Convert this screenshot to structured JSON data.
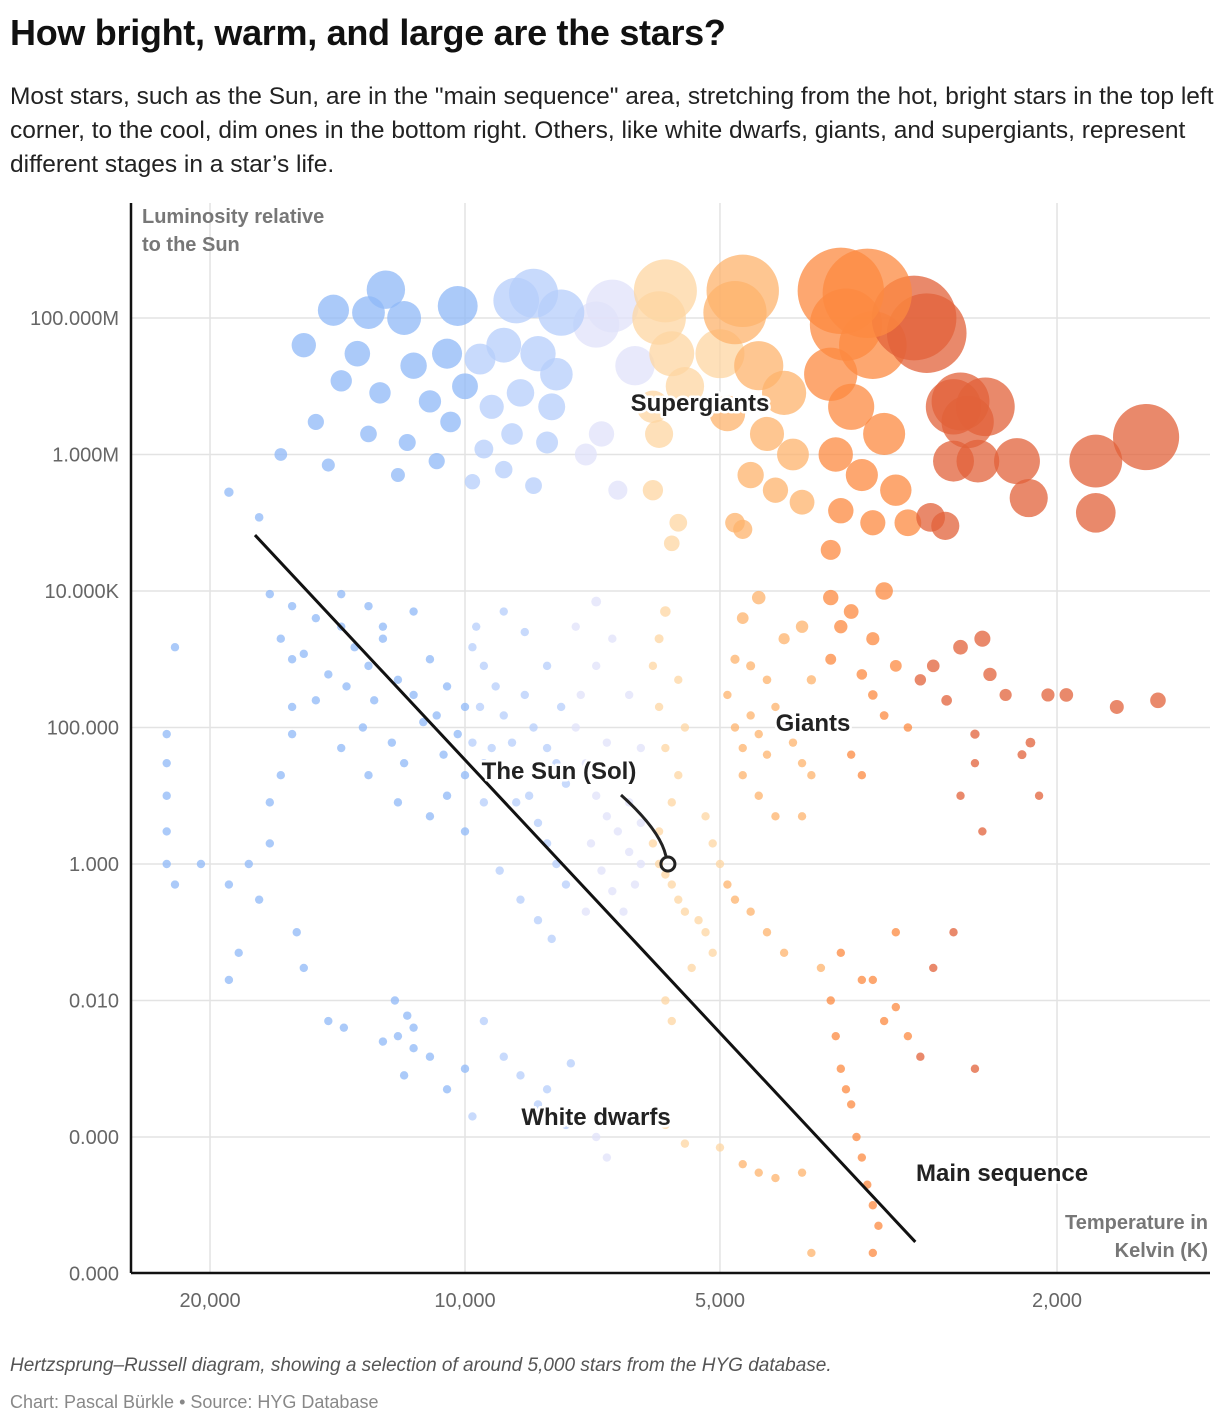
{
  "header": {
    "title": "How bright, warm, and large are the stars?",
    "subtitle": "Most stars, such as the Sun, are in the \"main sequence\" area, stretching from the hot, bright stars in the top left corner, to the cool, dim ones in the bottom right. Others, like white dwarfs, giants, and supergiants, represent different stages in a star’s life."
  },
  "footer": {
    "caption": "Hertzsprung–Russell diagram, showing a selection of around 5,000 stars from the HYG database.",
    "credit": "Chart: Pascal Bürkle • Source: HYG Database"
  },
  "chart_data": {
    "type": "scatter",
    "title": "How bright, warm, and large are the stars?",
    "xlabel": "Temperature in Kelvin (K)",
    "ylabel": "Luminosity relative to the Sun",
    "x_scale": "log-reversed",
    "y_scale": "log",
    "xlim": [
      25000,
      1300
    ],
    "ylim": [
      1e-06,
      4800000000
    ],
    "grid": true,
    "x_ticks": [
      {
        "value": 20000,
        "label": "20,000"
      },
      {
        "value": 10000,
        "label": "10,000"
      },
      {
        "value": 5000,
        "label": "5,000"
      },
      {
        "value": 2000,
        "label": "2,000"
      }
    ],
    "y_ticks": [
      {
        "value": 100000000,
        "label": "100.000M"
      },
      {
        "value": 1000000,
        "label": "1.000M"
      },
      {
        "value": 10000,
        "label": "10.000K"
      },
      {
        "value": 100,
        "label": "100.000"
      },
      {
        "value": 1,
        "label": "1.000"
      },
      {
        "value": 0.01,
        "label": "0.010"
      },
      {
        "value": 0.0001,
        "label": "0.000"
      },
      {
        "value": 1e-06,
        "label": "0.000"
      }
    ],
    "color_scale": [
      {
        "min_temp": 10000,
        "color": "#8fb8f7"
      },
      {
        "min_temp": 7500,
        "color": "#b6cefb"
      },
      {
        "min_temp": 6050,
        "color": "#e0e2fa"
      },
      {
        "min_temp": 5000,
        "color": "#fed6a2"
      },
      {
        "min_temp": 3800,
        "color": "#fdb36c"
      },
      {
        "min_temp": 3000,
        "color": "#fc8a40"
      },
      {
        "min_temp": 0,
        "color": "#e2613a"
      }
    ],
    "point_fields": [
      "temperature_K",
      "luminosity"
    ],
    "points": [
      [
        12400,
        260000000.0
      ],
      [
        14300,
        130000000.0
      ],
      [
        13000,
        120000000.0
      ],
      [
        11800,
        100000000.0
      ],
      [
        10200,
        150000000.0
      ],
      [
        8700,
        180000000.0
      ],
      [
        8300,
        230000000.0
      ],
      [
        7700,
        120000000.0
      ],
      [
        15500,
        40000000.0
      ],
      [
        13400,
        30000000.0
      ],
      [
        11500,
        20000000.0
      ],
      [
        10500,
        30000000.0
      ],
      [
        9600,
        25000000.0
      ],
      [
        9000,
        40000000.0
      ],
      [
        8200,
        30000000.0
      ],
      [
        7800,
        15000000.0
      ],
      [
        14000,
        12000000.0
      ],
      [
        12600,
        8000000.0
      ],
      [
        11000,
        6000000.0
      ],
      [
        10000,
        10000000.0
      ],
      [
        9300,
        5000000.0
      ],
      [
        8600,
        8000000.0
      ],
      [
        7900,
        5000000.0
      ],
      [
        15000,
        3000000.0
      ],
      [
        13000,
        2000000.0
      ],
      [
        11700,
        1500000.0
      ],
      [
        10400,
        3000000.0
      ],
      [
        9500,
        1200000.0
      ],
      [
        8800,
        2000000.0
      ],
      [
        8000,
        1500000.0
      ],
      [
        14500,
        700000.0
      ],
      [
        12000,
        500000.0
      ],
      [
        10800,
        800000.0
      ],
      [
        9800,
        400000.0
      ],
      [
        9000,
        600000.0
      ],
      [
        8300,
        350000.0
      ],
      [
        16500,
        1000000.0
      ],
      [
        17500,
        120000.0
      ],
      [
        19000,
        280000.0
      ],
      [
        7000,
        80000000.0
      ],
      [
        6700,
        150000000.0
      ],
      [
        6300,
        20000000.0
      ],
      [
        6000,
        5000000.0
      ],
      [
        7200,
        1000000.0
      ],
      [
        6600,
        300000.0
      ],
      [
        6900,
        2000000.0
      ],
      [
        5900,
        100000000.0
      ],
      [
        5800,
        250000000.0
      ],
      [
        5700,
        30000000.0
      ],
      [
        5500,
        10000000.0
      ],
      [
        5900,
        2000000.0
      ],
      [
        6000,
        300000.0
      ],
      [
        5600,
        100000.0
      ],
      [
        5700,
        50000.0
      ],
      [
        4700,
        250000000.0
      ],
      [
        4800,
        120000000.0
      ],
      [
        5000,
        30000000.0
      ],
      [
        4500,
        20000000.0
      ],
      [
        4200,
        8000000.0
      ],
      [
        4900,
        4000000.0
      ],
      [
        4400,
        2000000.0
      ],
      [
        4100,
        1000000.0
      ],
      [
        4600,
        500000.0
      ],
      [
        4300,
        300000.0
      ],
      [
        4000,
        200000.0
      ],
      [
        4800,
        100000.0
      ],
      [
        4700,
        80000.0
      ],
      [
        3600,
        250000000.0
      ],
      [
        3350,
        230000000.0
      ],
      [
        3550,
        80000000.0
      ],
      [
        3300,
        40000000.0
      ],
      [
        3700,
        15000000.0
      ],
      [
        3500,
        5000000.0
      ],
      [
        3200,
        2000000.0
      ],
      [
        3650,
        1000000.0
      ],
      [
        3400,
        500000.0
      ],
      [
        3100,
        300000.0
      ],
      [
        3600,
        150000.0
      ],
      [
        3300,
        100000.0
      ],
      [
        3700,
        40000.0
      ],
      [
        3000,
        100000.0
      ],
      [
        2950,
        100000000.0
      ],
      [
        2850,
        60000000.0
      ],
      [
        2650,
        5000000.0
      ],
      [
        2600,
        6000000.0
      ],
      [
        2550,
        3000000.0
      ],
      [
        2650,
        800000.0
      ],
      [
        2480,
        800000.0
      ],
      [
        2430,
        5000000.0
      ],
      [
        1800,
        800000.0
      ],
      [
        1570,
        1800000.0
      ],
      [
        1800,
        140000.0
      ],
      [
        2160,
        230000.0
      ],
      [
        2230,
        800000.0
      ],
      [
        2820,
        120000.0
      ],
      [
        2710,
        90000.0
      ],
      [
        14000,
        3000
      ],
      [
        13500,
        1500
      ],
      [
        13000,
        800
      ],
      [
        12500,
        2000
      ],
      [
        12000,
        500
      ],
      [
        11500,
        300
      ],
      [
        11000,
        1000
      ],
      [
        10800,
        150
      ],
      [
        10500,
        400
      ],
      [
        10200,
        80
      ],
      [
        10000,
        200
      ],
      [
        9800,
        60
      ],
      [
        9500,
        30
      ],
      [
        13800,
        400
      ],
      [
        13200,
        100
      ],
      [
        12800,
        250
      ],
      [
        12200,
        60
      ],
      [
        11800,
        30
      ],
      [
        11200,
        120
      ],
      [
        10600,
        40
      ],
      [
        10000,
        20
      ],
      [
        14500,
        600
      ],
      [
        15000,
        250
      ],
      [
        15500,
        1200
      ],
      [
        16000,
        80
      ],
      [
        14000,
        50
      ],
      [
        13000,
        20
      ],
      [
        12000,
        8
      ],
      [
        11000,
        5
      ],
      [
        10500,
        10
      ],
      [
        10000,
        3
      ],
      [
        9500,
        8
      ],
      [
        12500,
        3000
      ],
      [
        11500,
        5000
      ],
      [
        13000,
        6000
      ],
      [
        14000,
        9000
      ],
      [
        15000,
        4000
      ],
      [
        16000,
        6000
      ],
      [
        16500,
        2000
      ],
      [
        17000,
        9000
      ],
      [
        9800,
        1500
      ],
      [
        9500,
        800
      ],
      [
        9200,
        400
      ],
      [
        9000,
        150
      ],
      [
        8800,
        60
      ],
      [
        8600,
        20
      ],
      [
        8400,
        10
      ],
      [
        8200,
        4
      ],
      [
        8000,
        2
      ],
      [
        7800,
        1
      ],
      [
        7600,
        0.5
      ],
      [
        9600,
        200
      ],
      [
        9300,
        50
      ],
      [
        9000,
        25
      ],
      [
        8700,
        8
      ],
      [
        8500,
        300
      ],
      [
        8300,
        100
      ],
      [
        8000,
        50
      ],
      [
        7800,
        30
      ],
      [
        7600,
        15
      ],
      [
        9700,
        3000
      ],
      [
        9000,
        5000
      ],
      [
        8500,
        2500
      ],
      [
        8000,
        800
      ],
      [
        7700,
        200
      ],
      [
        9100,
        0.8
      ],
      [
        8600,
        0.3
      ],
      [
        8200,
        0.15
      ],
      [
        7900,
        0.08
      ],
      [
        7400,
        100
      ],
      [
        7200,
        30
      ],
      [
        7000,
        10
      ],
      [
        6800,
        5
      ],
      [
        6600,
        3
      ],
      [
        6400,
        1.5
      ],
      [
        6200,
        1
      ],
      [
        7300,
        300
      ],
      [
        7000,
        800
      ],
      [
        6800,
        60
      ],
      [
        6600,
        20
      ],
      [
        6400,
        8
      ],
      [
        6200,
        4
      ],
      [
        7100,
        2
      ],
      [
        6900,
        0.8
      ],
      [
        6700,
        0.4
      ],
      [
        6500,
        0.2
      ],
      [
        6300,
        0.5
      ],
      [
        7400,
        3000
      ],
      [
        7000,
        7000
      ],
      [
        6700,
        2000
      ],
      [
        6400,
        300
      ],
      [
        6200,
        50
      ],
      [
        7200,
        0.2
      ],
      [
        6000,
        2
      ],
      [
        5900,
        1
      ],
      [
        5800,
        0.7
      ],
      [
        5700,
        0.5
      ],
      [
        5600,
        0.3
      ],
      [
        5500,
        0.2
      ],
      [
        5900,
        3
      ],
      [
        5700,
        8
      ],
      [
        5600,
        20
      ],
      [
        5800,
        50
      ],
      [
        5500,
        100
      ],
      [
        5900,
        200
      ],
      [
        6000,
        800
      ],
      [
        5600,
        500
      ],
      [
        5300,
        0.15
      ],
      [
        5200,
        0.1
      ],
      [
        5100,
        0.05
      ],
      [
        5400,
        0.03
      ],
      [
        5800,
        0.01
      ],
      [
        5700,
        0.005
      ],
      [
        5900,
        2000
      ],
      [
        5800,
        5000
      ],
      [
        5200,
        5
      ],
      [
        5100,
        2
      ],
      [
        5000,
        1
      ],
      [
        4900,
        300
      ],
      [
        4800,
        100
      ],
      [
        4700,
        50
      ],
      [
        4600,
        150
      ],
      [
        4500,
        80
      ],
      [
        4400,
        40
      ],
      [
        4300,
        200
      ],
      [
        4200,
        100
      ],
      [
        4100,
        60
      ],
      [
        4000,
        30
      ],
      [
        3900,
        500
      ],
      [
        4800,
        1000
      ],
      [
        4600,
        800
      ],
      [
        4400,
        500
      ],
      [
        4200,
        2000
      ],
      [
        4000,
        3000
      ],
      [
        4700,
        20
      ],
      [
        4500,
        10
      ],
      [
        4300,
        5
      ],
      [
        4900,
        0.5
      ],
      [
        4800,
        0.3
      ],
      [
        4600,
        0.2
      ],
      [
        4400,
        0.1
      ],
      [
        4200,
        0.05
      ],
      [
        4700,
        4000
      ],
      [
        4500,
        8000
      ],
      [
        3900,
        20
      ],
      [
        4000,
        5
      ],
      [
        3700,
        1000
      ],
      [
        3600,
        3000
      ],
      [
        3500,
        5000
      ],
      [
        3400,
        600
      ],
      [
        3300,
        300
      ],
      [
        3200,
        150
      ],
      [
        3100,
        800
      ],
      [
        3000,
        100
      ],
      [
        3600,
        100
      ],
      [
        3500,
        40
      ],
      [
        3400,
        20
      ],
      [
        3700,
        8000
      ],
      [
        3300,
        2000
      ],
      [
        3200,
        10000
      ],
      [
        3800,
        0.03
      ],
      [
        3700,
        0.01
      ],
      [
        3650,
        0.003
      ],
      [
        3600,
        0.001
      ],
      [
        3550,
        0.0005
      ],
      [
        3500,
        0.0003
      ],
      [
        3450,
        0.0001
      ],
      [
        3400,
        5e-05
      ],
      [
        3350,
        2e-05
      ],
      [
        3300,
        1e-05
      ],
      [
        3250,
        5e-06
      ],
      [
        3300,
        2e-06
      ],
      [
        3600,
        0.05
      ],
      [
        3400,
        0.02
      ],
      [
        3200,
        0.005
      ],
      [
        3100,
        0.008
      ],
      [
        3000,
        0.003
      ],
      [
        2900,
        0.0015
      ],
      [
        3100,
        0.1
      ],
      [
        3300,
        0.02
      ],
      [
        2900,
        500
      ],
      [
        2800,
        800
      ],
      [
        2700,
        250
      ],
      [
        2600,
        1500
      ],
      [
        2500,
        80
      ],
      [
        2450,
        2000
      ],
      [
        2400,
        600
      ],
      [
        2300,
        300
      ],
      [
        2200,
        40
      ],
      [
        2150,
        60
      ],
      [
        2100,
        10
      ],
      [
        2050,
        300
      ],
      [
        1950,
        300
      ],
      [
        1700,
        200
      ],
      [
        1520,
        250
      ],
      [
        2500,
        30
      ],
      [
        2600,
        10
      ],
      [
        2450,
        3
      ],
      [
        2800,
        0.03
      ],
      [
        2500,
        0.001
      ],
      [
        2650,
        0.1
      ],
      [
        22500,
        80
      ],
      [
        22500,
        30
      ],
      [
        22500,
        10
      ],
      [
        22500,
        3
      ],
      [
        22500,
        1
      ],
      [
        22000,
        1500
      ],
      [
        22000,
        0.5
      ],
      [
        20500,
        1
      ],
      [
        19000,
        0.5
      ],
      [
        18500,
        0.05
      ],
      [
        19000,
        0.02
      ],
      [
        18000,
        1
      ],
      [
        17500,
        0.3
      ],
      [
        17000,
        2
      ],
      [
        16500,
        20
      ],
      [
        16000,
        200
      ],
      [
        15800,
        0.1
      ],
      [
        15500,
        0.03
      ],
      [
        14500,
        0.005
      ],
      [
        16000,
        1000
      ],
      [
        17000,
        8
      ],
      [
        12100,
        0.01
      ],
      [
        11700,
        0.006
      ],
      [
        11500,
        0.004
      ],
      [
        13900,
        0.004
      ],
      [
        12000,
        0.003
      ],
      [
        11500,
        0.002
      ],
      [
        11000,
        0.0015
      ],
      [
        12500,
        0.0025
      ],
      [
        11800,
        0.0008
      ],
      [
        10500,
        0.0005
      ],
      [
        10000,
        0.001
      ],
      [
        9800,
        0.0002
      ],
      [
        9000,
        0.0015
      ],
      [
        8600,
        0.0008
      ],
      [
        8200,
        0.0003
      ],
      [
        8000,
        0.0005
      ],
      [
        7500,
        0.0012
      ],
      [
        7600,
        0.00015
      ],
      [
        7000,
        0.0001
      ],
      [
        6800,
        5e-05
      ],
      [
        6000,
        0.0002
      ],
      [
        5800,
        0.00015
      ],
      [
        5500,
        8e-05
      ],
      [
        5000,
        7e-05
      ],
      [
        4700,
        4e-05
      ],
      [
        4500,
        3e-05
      ],
      [
        4300,
        2.5e-05
      ],
      [
        4000,
        3e-05
      ],
      [
        3900,
        2e-06
      ],
      [
        9500,
        0.005
      ]
    ],
    "main_sequence_line": [
      [
        17700,
        66000
      ],
      [
        2940,
        2.9e-06
      ]
    ],
    "sun": {
      "temperature_K": 5760,
      "luminosity": 1
    },
    "annotations": {
      "supergiants": "Supergiants",
      "giants": "Giants",
      "sun": "The Sun (Sol)",
      "white_dwarfs": "White dwarfs",
      "main_sequence": "Main sequence"
    },
    "y_title_lines": [
      "Luminosity relative",
      "to the Sun"
    ],
    "x_title_lines": [
      "Temperature in",
      "Kelvin (K)"
    ]
  }
}
